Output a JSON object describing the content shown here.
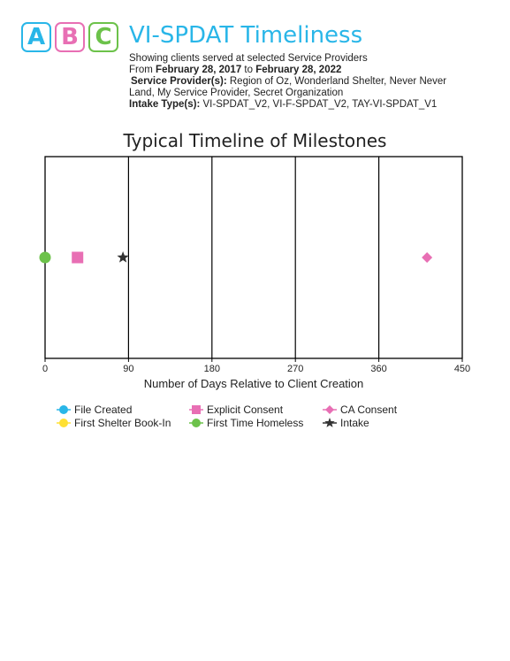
{
  "logo": {
    "tiles": [
      {
        "letter": "A",
        "color": "#29b6e8"
      },
      {
        "letter": "B",
        "color": "#e86fb4"
      },
      {
        "letter": "C",
        "color": "#6cc24a"
      }
    ]
  },
  "report": {
    "title": "VI-SPDAT Timeliness",
    "title_color": "#29b6e8",
    "subtitle": "Showing clients served at selected Service Providers",
    "date_prefix": "From",
    "date_start": "February 28, 2017",
    "date_joiner": "to",
    "date_end": "February 28, 2022",
    "providers_label": "Service Provider(s):",
    "providers_line1": "Region of Oz, Wonderland Shelter, Never Never",
    "providers_line2": "Land, My Service Provider, Secret Organization",
    "intake_label": "Intake Type(s):",
    "intake_value": "VI-SPDAT_V2, VI-F-SPDAT_V2, TAY-VI-SPDAT_V1"
  },
  "chart_data": {
    "type": "scatter",
    "title": "Typical Timeline of Milestones",
    "xlabel": "Number of Days Relative to Client Creation",
    "xlim": [
      0,
      450
    ],
    "xticks": [
      0,
      90,
      180,
      270,
      360,
      450
    ],
    "grid": true,
    "legend_position": "bottom",
    "series": [
      {
        "name": "File Created",
        "marker": "circle",
        "color": "#29b6e8",
        "x": null
      },
      {
        "name": "First Shelter Book-In",
        "marker": "circle",
        "color": "#ffe033",
        "x": null
      },
      {
        "name": "Explicit Consent",
        "marker": "square",
        "color": "#e86fb4",
        "x": 35
      },
      {
        "name": "First Time Homeless",
        "marker": "circle",
        "color": "#6cc24a",
        "x": 0
      },
      {
        "name": "CA Consent",
        "marker": "diamond",
        "color": "#e86fb4",
        "x": 412
      },
      {
        "name": "Intake",
        "marker": "star",
        "color": "#333333",
        "x": 84
      }
    ]
  }
}
